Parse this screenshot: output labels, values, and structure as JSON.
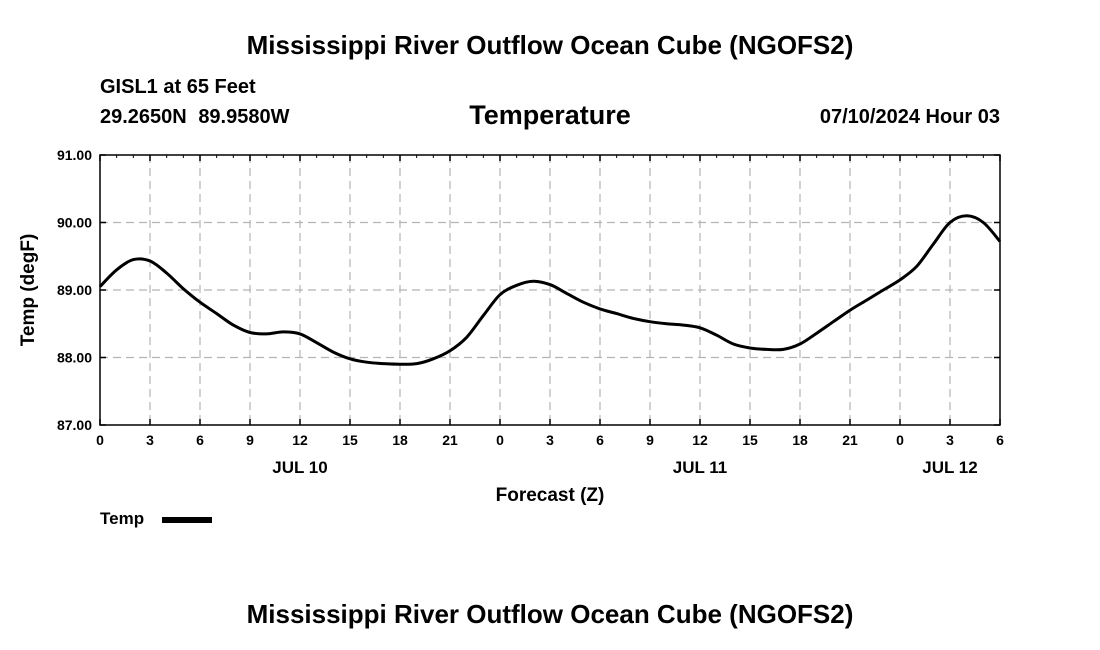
{
  "header": {
    "title": "Mississippi River Outflow Ocean Cube (NGOFS2)",
    "station": "GISL1 at 65 Feet",
    "lat": "29.2650N",
    "lon": "89.9580W",
    "variable": "Temperature",
    "datetime": "07/10/2024 Hour 03"
  },
  "footer": {
    "title": "Mississippi River Outflow Ocean Cube (NGOFS2)"
  },
  "colors": {
    "line": "#000000",
    "grid": "#b4b4b4",
    "axis": "#000000"
  },
  "chart_data": {
    "type": "line",
    "title": "Temperature",
    "ylabel": "Temp (degF)",
    "xlabel": "Forecast (Z)",
    "ylim": [
      87.0,
      91.0
    ],
    "xlim": [
      0,
      54
    ],
    "yticks": [
      87.0,
      88.0,
      89.0,
      90.0,
      91.0
    ],
    "ytick_labels": [
      "87.00",
      "88.00",
      "89.00",
      "90.00",
      "91.00"
    ],
    "xticks": [
      0,
      3,
      6,
      9,
      12,
      15,
      18,
      21,
      24,
      27,
      30,
      33,
      36,
      39,
      42,
      45,
      48,
      51,
      54
    ],
    "xtick_labels": [
      "0",
      "3",
      "6",
      "9",
      "12",
      "15",
      "18",
      "21",
      "0",
      "3",
      "6",
      "9",
      "12",
      "15",
      "18",
      "21",
      "0",
      "3",
      "6"
    ],
    "day_labels": [
      {
        "x": 12,
        "label": "JUL 10"
      },
      {
        "x": 36,
        "label": "JUL 11"
      },
      {
        "x": 51,
        "label": "JUL 12"
      }
    ],
    "grid": true,
    "legend": {
      "position": "bottom-left",
      "label": "Temp"
    },
    "series": [
      {
        "name": "Temp",
        "x": [
          0,
          1,
          2,
          3,
          4,
          5,
          6,
          7,
          8,
          9,
          10,
          11,
          12,
          13,
          14,
          15,
          16,
          17,
          18,
          19,
          20,
          21,
          22,
          23,
          24,
          25,
          26,
          27,
          28,
          29,
          30,
          31,
          32,
          33,
          34,
          35,
          36,
          37,
          38,
          39,
          40,
          41,
          42,
          43,
          44,
          45,
          46,
          47,
          48,
          49,
          50,
          51,
          52,
          53,
          54
        ],
        "values": [
          89.05,
          89.3,
          89.45,
          89.43,
          89.25,
          89.02,
          88.82,
          88.65,
          88.48,
          88.37,
          88.35,
          88.38,
          88.35,
          88.22,
          88.08,
          87.98,
          87.93,
          87.91,
          87.9,
          87.91,
          87.98,
          88.1,
          88.3,
          88.62,
          88.93,
          89.07,
          89.13,
          89.08,
          88.95,
          88.82,
          88.72,
          88.65,
          88.58,
          88.53,
          88.5,
          88.48,
          88.44,
          88.33,
          88.2,
          88.14,
          88.12,
          88.12,
          88.2,
          88.36,
          88.53,
          88.7,
          88.85,
          89.0,
          89.15,
          89.35,
          89.68,
          90.0,
          90.1,
          90.0,
          89.72
        ]
      }
    ]
  }
}
